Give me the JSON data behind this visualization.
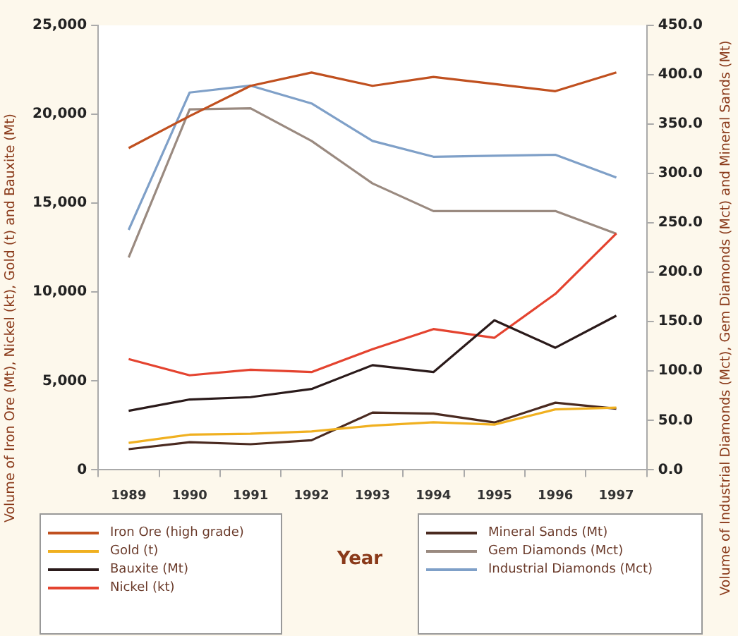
{
  "chart_data": {
    "type": "line",
    "xlabel": "Year",
    "ylabel": "Volume of Iron Ore (Mt), Nickel (kt), Gold (t) and Bauxite (Mt)",
    "y2label": "Volume of Industrial Diamonds (Mct), Gem Diamonds (Mct) and Mineral Sands (Mt)",
    "categories": [
      "1989",
      "1990",
      "1991",
      "1992",
      "1993",
      "1994",
      "1995",
      "1996",
      "1997"
    ],
    "ylim": [
      0,
      25000
    ],
    "yticks": [
      {
        "value": 0,
        "label": "0"
      },
      {
        "value": 5000,
        "label": "5,000"
      },
      {
        "value": 10000,
        "label": "10,000"
      },
      {
        "value": 15000,
        "label": "15,000"
      },
      {
        "value": 20000,
        "label": "20,000"
      },
      {
        "value": 25000,
        "label": "25,000"
      }
    ],
    "y2lim": [
      0,
      450
    ],
    "y2ticks": [
      {
        "value": 0,
        "label": "0.0"
      },
      {
        "value": 50,
        "label": "50.0"
      },
      {
        "value": 100,
        "label": "100.0"
      },
      {
        "value": 150,
        "label": "150.0"
      },
      {
        "value": 200,
        "label": "200.0"
      },
      {
        "value": 250,
        "label": "250.0"
      },
      {
        "value": 300,
        "label": "300.0"
      },
      {
        "value": 350,
        "label": "350.0"
      },
      {
        "value": 400,
        "label": "400.0"
      },
      {
        "value": 450,
        "label": "450.0"
      }
    ],
    "grid": false,
    "legend": "bottom",
    "marker": "none",
    "series": [
      {
        "name": "Iron Ore (high grade)",
        "color": "#c0501f",
        "values": [
          18100,
          19900,
          21600,
          22350,
          21600,
          22100,
          21700,
          21300,
          22350
        ]
      },
      {
        "name": "Gold (t)",
        "color": "#f0b020",
        "values": [
          1520,
          1980,
          2030,
          2160,
          2490,
          2680,
          2550,
          3400,
          3500
        ]
      },
      {
        "name": "Bauxite (Mt)",
        "color": "#2a1a1a",
        "values": [
          3320,
          3960,
          4090,
          4550,
          5890,
          5500,
          8410,
          6870,
          8670
        ]
      },
      {
        "name": "Nickel (kt)",
        "color": "#e4432f",
        "values": [
          6230,
          5320,
          5630,
          5500,
          6790,
          7920,
          7430,
          9900,
          13300
        ]
      },
      {
        "name": "Mineral Sands (Mt)",
        "color": "#4a2a20",
        "axis": "y2",
        "values": [
          21,
          28,
          26,
          30,
          58,
          57,
          48,
          68,
          62
        ]
      },
      {
        "name": "Gem Diamonds (Mct)",
        "color": "#9a8a80",
        "axis": "y2",
        "values": [
          215,
          365,
          366,
          333,
          290,
          262,
          262,
          262,
          239
        ]
      },
      {
        "name": "Industrial Diamonds  (Mct)",
        "color": "#7fa0c8",
        "axis": "y2",
        "values": [
          243,
          382,
          389,
          371,
          333,
          317,
          318,
          319,
          296
        ]
      }
    ]
  }
}
